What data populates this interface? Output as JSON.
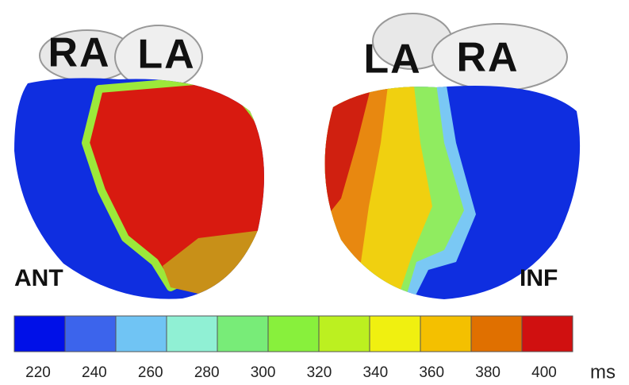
{
  "views": [
    {
      "atria": [
        "RA",
        "LA"
      ],
      "side": "ANT"
    },
    {
      "atria": [
        "LA",
        "RA"
      ],
      "side": "INF"
    }
  ],
  "colorbar": {
    "colors": [
      "#0010e8",
      "#3c64ec",
      "#70c4f4",
      "#90f0d4",
      "#78ec78",
      "#88f03c",
      "#bcf020",
      "#f0f010",
      "#f4c000",
      "#e07000",
      "#d01010"
    ],
    "ticks": [
      220,
      240,
      260,
      280,
      300,
      320,
      340,
      360,
      380,
      400
    ],
    "unit": "ms"
  }
}
